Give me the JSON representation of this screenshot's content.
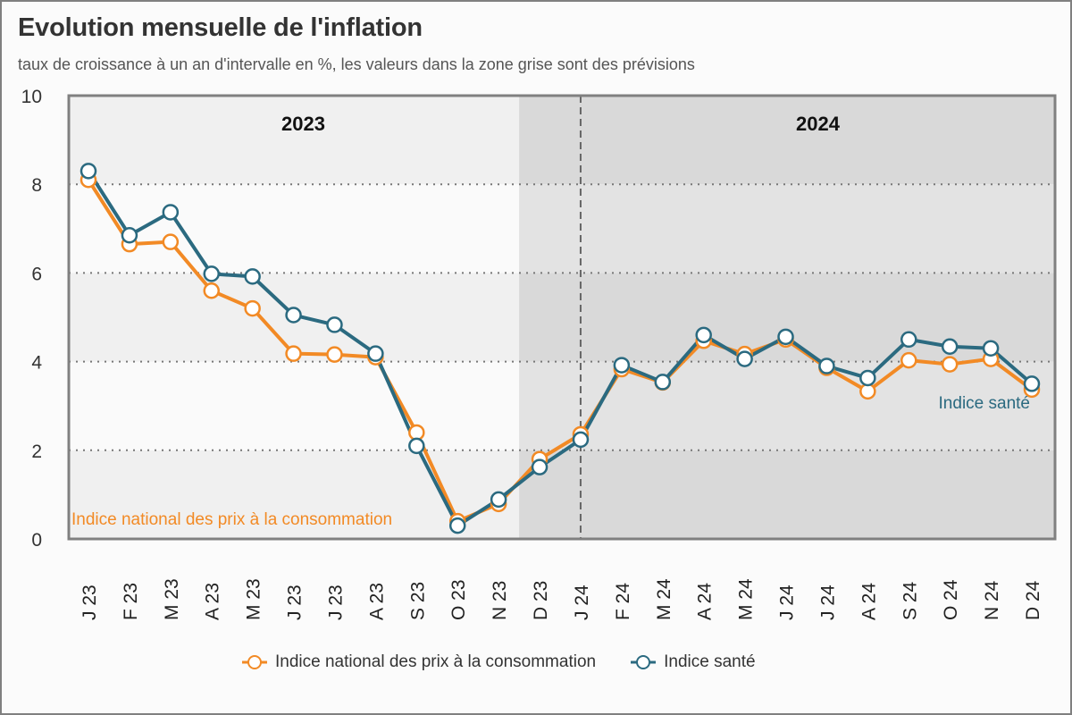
{
  "title": "Evolution mensuelle de l'inflation",
  "subtitle": "taux de croissance à un an d'intervalle en %, les valeurs dans la zone grise sont des prévisions",
  "colors": {
    "ipc": "#f28a25",
    "sante": "#2b6a80",
    "band_light": "#fafafa",
    "band_dark": "#f0f0f0",
    "forecast_light": "#e3e3e3",
    "forecast_dark": "#d9d9d9"
  },
  "chart_data": {
    "type": "line",
    "title": "Evolution mensuelle de l'inflation",
    "subtitle": "taux de croissance à un an d'intervalle en %, les valeurs dans la zone grise sont des prévisions",
    "xlabel": "",
    "ylabel": "",
    "ylim": [
      0,
      10
    ],
    "yticks": [
      0,
      2,
      4,
      6,
      8,
      10
    ],
    "grid": true,
    "legend_position": "bottom",
    "categories": [
      "J 23",
      "F 23",
      "M 23",
      "A 23",
      "M 23",
      "J 23",
      "J 23",
      "A 23",
      "S 23",
      "O 23",
      "N 23",
      "D 23",
      "J 24",
      "F 24",
      "M 24",
      "A 24",
      "M 24",
      "J 24",
      "J 24",
      "A 24",
      "S 24",
      "O 24",
      "N 24",
      "D 24"
    ],
    "forecast_start_category": "D 23",
    "year_separator_between": [
      "D 23",
      "J 24"
    ],
    "year_labels": [
      "2023",
      "2024"
    ],
    "series": [
      {
        "name": "Indice national des prix à la consommation",
        "key": "ipc",
        "values": [
          8.1,
          6.65,
          6.7,
          5.6,
          5.2,
          4.18,
          4.16,
          4.1,
          2.4,
          0.4,
          0.79,
          1.8,
          2.36,
          3.83,
          3.53,
          4.47,
          4.17,
          4.5,
          3.86,
          3.33,
          4.03,
          3.94,
          4.06,
          3.37
        ]
      },
      {
        "name": "Indice santé",
        "key": "sante",
        "values": [
          8.3,
          6.85,
          7.37,
          5.98,
          5.92,
          5.05,
          4.83,
          4.18,
          2.1,
          0.3,
          0.89,
          1.62,
          2.24,
          3.92,
          3.54,
          4.6,
          4.06,
          4.56,
          3.9,
          3.63,
          4.5,
          4.34,
          4.3,
          3.5
        ]
      }
    ],
    "annotations": [
      {
        "text": "Indice national des prix à la consommation",
        "series": "ipc",
        "near": "O 23"
      },
      {
        "text": "Indice santé",
        "series": "sante",
        "near": "D 24"
      }
    ]
  },
  "legend": [
    {
      "label": "Indice national des prix à la consommation",
      "key": "ipc"
    },
    {
      "label": "Indice santé",
      "key": "sante"
    }
  ]
}
